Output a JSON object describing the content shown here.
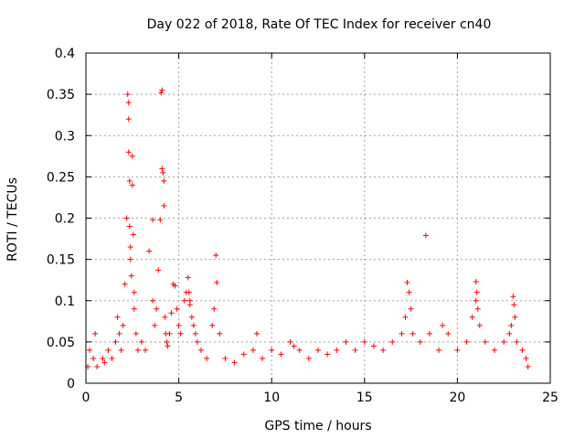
{
  "chart_data": {
    "type": "scatter",
    "title": "Day 022 of 2018, Rate Of TEC Index for receiver cn40",
    "xlabel": "GPS time / hours",
    "ylabel": "ROTI / TECUs",
    "xlim": [
      0,
      25
    ],
    "ylim": [
      0,
      0.4
    ],
    "x_ticks": [
      0,
      5,
      10,
      15,
      20,
      25
    ],
    "y_ticks": [
      0,
      0.05,
      0.1,
      0.15,
      0.2,
      0.25,
      0.3,
      0.35,
      0.4
    ],
    "x_tick_labels": [
      "0",
      "5",
      "10",
      "15",
      "20",
      "25"
    ],
    "y_tick_labels": [
      "0",
      "0.05",
      "0.1",
      "0.15",
      "0.2",
      "0.25",
      "0.3",
      "0.35",
      "0.4"
    ],
    "grid": true,
    "marker": "+",
    "marker_color": "#ff0000",
    "series": [
      {
        "name": "ROTI",
        "x": [
          0.1,
          0.2,
          0.4,
          0.5,
          0.6,
          0.9,
          1.0,
          1.2,
          1.4,
          1.6,
          1.7,
          1.8,
          1.9,
          2.0,
          2.1,
          2.2,
          2.25,
          2.3,
          2.3,
          2.3,
          2.35,
          2.35,
          2.4,
          2.4,
          2.45,
          2.5,
          2.5,
          2.55,
          2.6,
          2.6,
          2.7,
          2.8,
          3.0,
          3.2,
          3.4,
          3.6,
          3.6,
          3.7,
          3.8,
          3.9,
          4.0,
          4.05,
          4.1,
          4.1,
          4.15,
          4.2,
          4.2,
          4.25,
          4.3,
          4.35,
          4.4,
          4.5,
          4.6,
          4.7,
          4.8,
          4.9,
          5.0,
          5.1,
          5.3,
          5.4,
          5.5,
          5.55,
          5.6,
          5.6,
          5.7,
          5.8,
          5.9,
          6.0,
          6.2,
          6.5,
          6.8,
          6.9,
          7.0,
          7.05,
          7.2,
          7.5,
          8.0,
          8.5,
          9.0,
          9.2,
          9.5,
          10.0,
          10.5,
          11.0,
          11.2,
          11.5,
          12.0,
          12.5,
          13.0,
          13.5,
          14.0,
          14.5,
          15.0,
          15.5,
          16.0,
          16.5,
          17.0,
          17.2,
          17.3,
          17.4,
          17.5,
          17.6,
          18.0,
          18.3,
          18.5,
          19.0,
          19.2,
          19.5,
          20.0,
          20.5,
          20.8,
          21.0,
          21.0,
          21.05,
          21.1,
          21.2,
          21.5,
          22.0,
          22.5,
          22.8,
          22.9,
          23.0,
          23.05,
          23.1,
          23.2,
          23.5,
          23.7,
          23.8
        ],
        "y": [
          0.02,
          0.04,
          0.03,
          0.06,
          0.02,
          0.03,
          0.025,
          0.04,
          0.03,
          0.05,
          0.08,
          0.06,
          0.04,
          0.07,
          0.12,
          0.2,
          0.35,
          0.34,
          0.32,
          0.28,
          0.245,
          0.19,
          0.165,
          0.15,
          0.13,
          0.275,
          0.24,
          0.18,
          0.11,
          0.09,
          0.06,
          0.04,
          0.05,
          0.04,
          0.16,
          0.198,
          0.1,
          0.07,
          0.09,
          0.137,
          0.198,
          0.352,
          0.355,
          0.26,
          0.255,
          0.245,
          0.215,
          0.08,
          0.06,
          0.05,
          0.045,
          0.06,
          0.085,
          0.12,
          0.118,
          0.09,
          0.07,
          0.06,
          0.1,
          0.11,
          0.128,
          0.11,
          0.1,
          0.095,
          0.08,
          0.07,
          0.06,
          0.05,
          0.04,
          0.03,
          0.07,
          0.09,
          0.155,
          0.122,
          0.06,
          0.03,
          0.025,
          0.035,
          0.04,
          0.06,
          0.03,
          0.04,
          0.035,
          0.05,
          0.045,
          0.04,
          0.03,
          0.04,
          0.035,
          0.04,
          0.05,
          0.04,
          0.05,
          0.045,
          0.04,
          0.05,
          0.06,
          0.08,
          0.122,
          0.11,
          0.09,
          0.06,
          0.05,
          0.179,
          0.06,
          0.04,
          0.07,
          0.06,
          0.04,
          0.05,
          0.08,
          0.1,
          0.123,
          0.11,
          0.09,
          0.07,
          0.05,
          0.04,
          0.05,
          0.06,
          0.07,
          0.105,
          0.095,
          0.08,
          0.05,
          0.04,
          0.03,
          0.02
        ]
      }
    ]
  }
}
